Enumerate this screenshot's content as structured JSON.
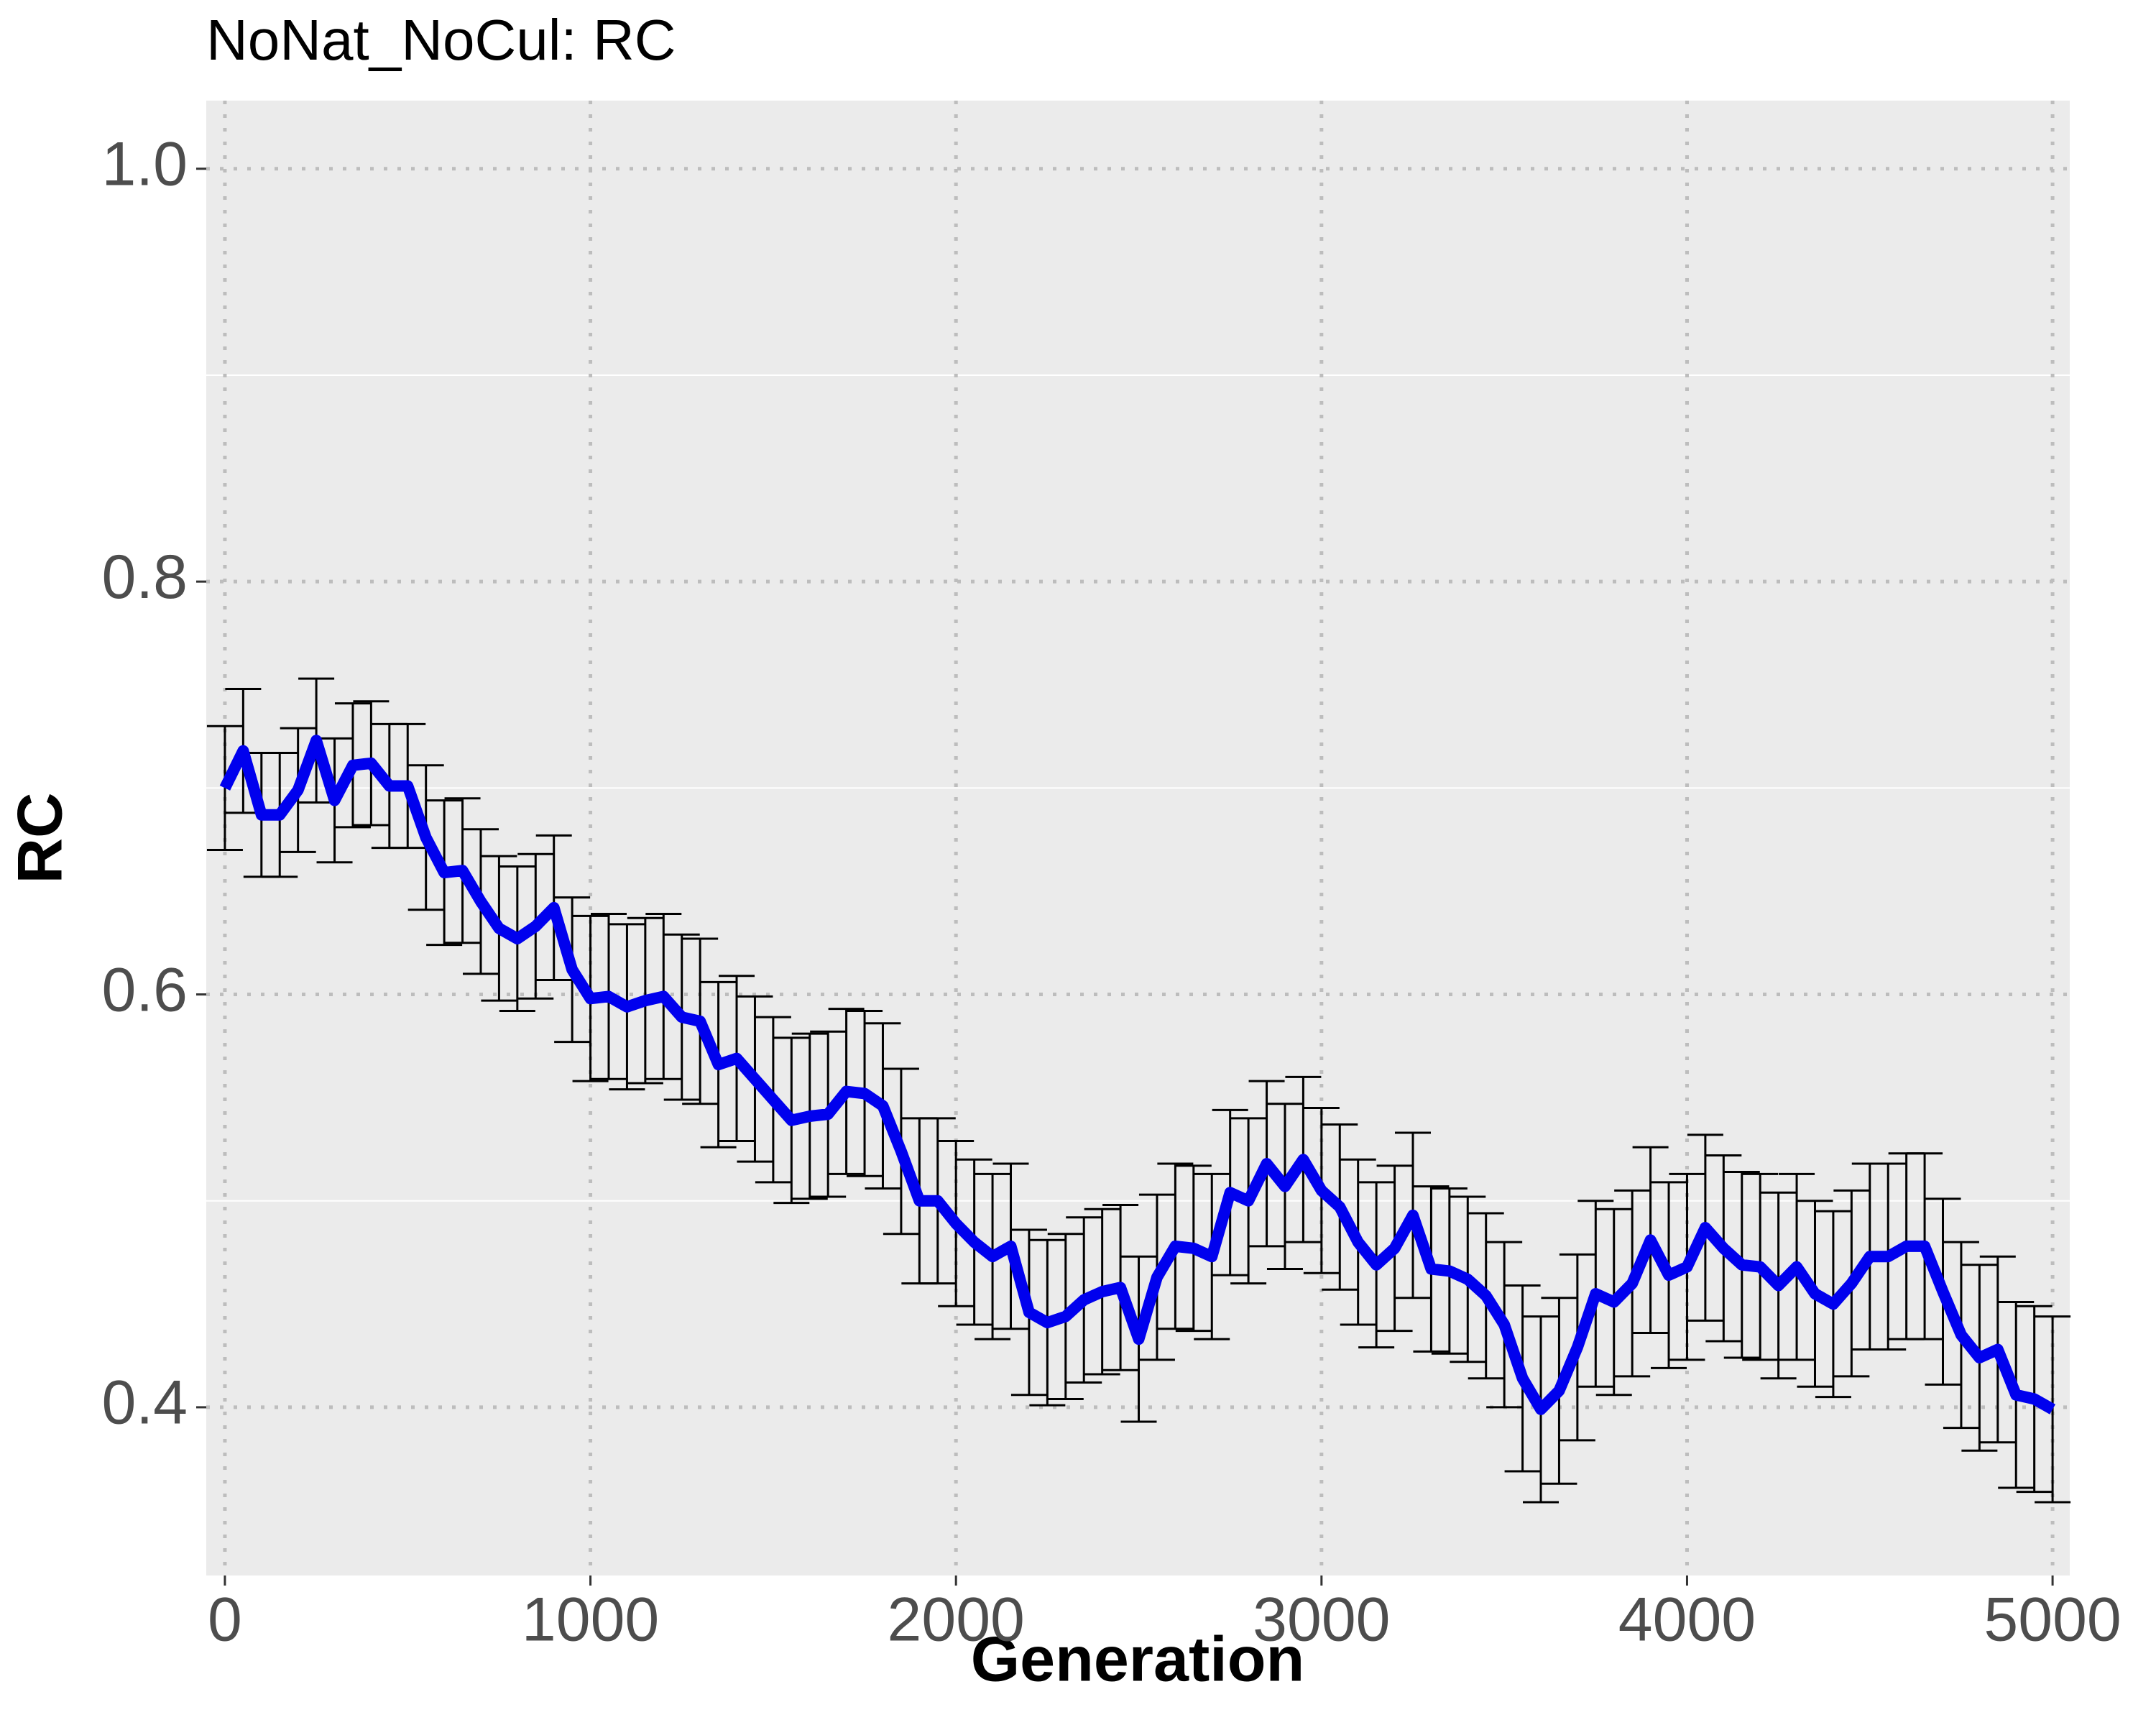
{
  "chart_data": {
    "type": "line",
    "title": "NoNat_NoCul: RC",
    "x_label": "Generation",
    "y_label": "RC",
    "x": [
      0,
      50,
      100,
      150,
      200,
      250,
      300,
      350,
      400,
      450,
      500,
      550,
      600,
      650,
      700,
      750,
      800,
      850,
      900,
      950,
      1000,
      1050,
      1100,
      1150,
      1200,
      1250,
      1300,
      1350,
      1400,
      1450,
      1500,
      1550,
      1600,
      1650,
      1700,
      1750,
      1800,
      1850,
      1900,
      1950,
      2000,
      2050,
      2100,
      2150,
      2200,
      2250,
      2300,
      2350,
      2400,
      2450,
      2500,
      2550,
      2600,
      2650,
      2700,
      2750,
      2800,
      2850,
      2900,
      2950,
      3000,
      3050,
      3100,
      3150,
      3200,
      3250,
      3300,
      3350,
      3400,
      3450,
      3500,
      3550,
      3600,
      3650,
      3700,
      3750,
      3800,
      3850,
      3900,
      3950,
      4000,
      4050,
      4100,
      4150,
      4200,
      4250,
      4300,
      4350,
      4400,
      4450,
      4500,
      4550,
      4600,
      4650,
      4700,
      4750,
      4800,
      4850,
      4900,
      4950,
      5000
    ],
    "values": [
      0.7,
      0.718,
      0.687,
      0.687,
      0.699,
      0.723,
      0.694,
      0.711,
      0.712,
      0.701,
      0.701,
      0.676,
      0.659,
      0.66,
      0.645,
      0.632,
      0.627,
      0.633,
      0.642,
      0.612,
      0.598,
      0.599,
      0.594,
      0.597,
      0.599,
      0.589,
      0.587,
      0.566,
      0.569,
      0.559,
      0.549,
      0.539,
      0.541,
      0.542,
      0.553,
      0.552,
      0.546,
      0.524,
      0.5,
      0.5,
      0.489,
      0.48,
      0.473,
      0.478,
      0.446,
      0.441,
      0.444,
      0.452,
      0.456,
      0.458,
      0.433,
      0.463,
      0.478,
      0.477,
      0.473,
      0.504,
      0.5,
      0.518,
      0.507,
      0.52,
      0.505,
      0.497,
      0.48,
      0.469,
      0.477,
      0.493,
      0.467,
      0.466,
      0.462,
      0.454,
      0.44,
      0.414,
      0.399,
      0.408,
      0.429,
      0.455,
      0.451,
      0.46,
      0.481,
      0.464,
      0.468,
      0.487,
      0.477,
      0.469,
      0.468,
      0.459,
      0.468,
      0.455,
      0.45,
      0.46,
      0.473,
      0.473,
      0.478,
      0.478,
      0.456,
      0.435,
      0.424,
      0.428,
      0.406,
      0.404,
      0.399
    ],
    "errors": [
      0.03,
      0.03,
      0.03,
      0.03,
      0.03,
      0.03,
      0.03,
      0.03,
      0.03,
      0.03,
      0.03,
      0.035,
      0.035,
      0.035,
      0.035,
      0.035,
      0.035,
      0.035,
      0.035,
      0.035,
      0.04,
      0.04,
      0.04,
      0.04,
      0.04,
      0.04,
      0.04,
      0.04,
      0.04,
      0.04,
      0.04,
      0.04,
      0.04,
      0.04,
      0.04,
      0.04,
      0.04,
      0.04,
      0.04,
      0.04,
      0.04,
      0.04,
      0.04,
      0.04,
      0.04,
      0.04,
      0.04,
      0.04,
      0.04,
      0.04,
      0.04,
      0.04,
      0.04,
      0.04,
      0.04,
      0.04,
      0.04,
      0.04,
      0.04,
      0.04,
      0.04,
      0.04,
      0.04,
      0.04,
      0.04,
      0.04,
      0.04,
      0.04,
      0.04,
      0.04,
      0.04,
      0.045,
      0.045,
      0.045,
      0.045,
      0.045,
      0.045,
      0.045,
      0.045,
      0.045,
      0.045,
      0.045,
      0.045,
      0.045,
      0.045,
      0.045,
      0.045,
      0.045,
      0.045,
      0.045,
      0.045,
      0.045,
      0.045,
      0.045,
      0.045,
      0.045,
      0.045,
      0.045,
      0.045,
      0.045,
      0.045
    ],
    "color": "#0000ee",
    "error_color": "#000000",
    "xlim": [
      -51,
      5047
    ],
    "ylim": [
      0.3185,
      1.033
    ],
    "xticks": [
      0,
      1000,
      2000,
      3000,
      4000,
      5000
    ],
    "yticks": [
      0.4,
      0.6,
      0.8,
      {
        "value": 1,
        "label": "1.0"
      }
    ],
    "minor_yticks": [
      0.5,
      0.7,
      0.9
    ],
    "grid": true
  }
}
